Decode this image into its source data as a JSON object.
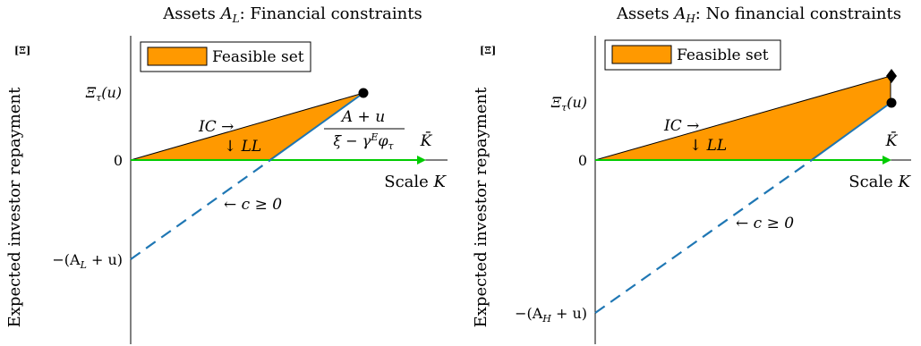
{
  "chart_data": [
    {
      "type": "area",
      "title_text": "Assets ",
      "title_var": "A",
      "title_sub": "L",
      "title_rest": ": Financial constraints",
      "ylabel": "Expected investor repayment",
      "y_axis_marker": "[Ξ]",
      "xlabel_text": "Scale ",
      "xlabel_var": "K",
      "legend": "Feasible set",
      "legend_position": "top-left",
      "y_tick_xi": "Ξ",
      "y_tick_xi_sub": "τ",
      "y_tick_xi_arg": "(u)",
      "y_tick_zero": "0",
      "y_tick_neg": "−(A",
      "y_tick_neg_sub": "L",
      "y_tick_neg_rest": " + u)",
      "kbar_label": "K̄",
      "annotation_ic": "IC →",
      "annotation_ll": "↓ LL",
      "annotation_c": "← c ≥ 0",
      "annotation_frac_num": "A + u",
      "annotation_frac_den": "ξ − γ",
      "annotation_frac_sup": "E",
      "annotation_frac_den_rest": "φ",
      "annotation_frac_den_sub": "τ",
      "colors": {
        "fill": "#ff9900",
        "ll_line": "#1f77b4",
        "axis_arrow": "#00cc00"
      }
    },
    {
      "type": "area",
      "title_text": "Assets ",
      "title_var": "A",
      "title_sub": "H",
      "title_rest": ": No financial constraints",
      "ylabel": "Expected investor repayment",
      "y_axis_marker": "[Ξ]",
      "xlabel_text": "Scale ",
      "xlabel_var": "K",
      "legend": "Feasible set",
      "legend_position": "top-left",
      "y_tick_xi": "Ξ",
      "y_tick_xi_sub": "τ",
      "y_tick_xi_arg": "(u)",
      "y_tick_zero": "0",
      "y_tick_neg": "−(A",
      "y_tick_neg_sub": "H",
      "y_tick_neg_rest": " + u)",
      "kbar_label": "K̄",
      "annotation_ic": "IC →",
      "annotation_ll": "↓ LL",
      "annotation_c": "← c ≥ 0",
      "colors": {
        "fill": "#ff9900",
        "ll_line": "#1f77b4",
        "axis_arrow": "#00cc00"
      }
    }
  ]
}
